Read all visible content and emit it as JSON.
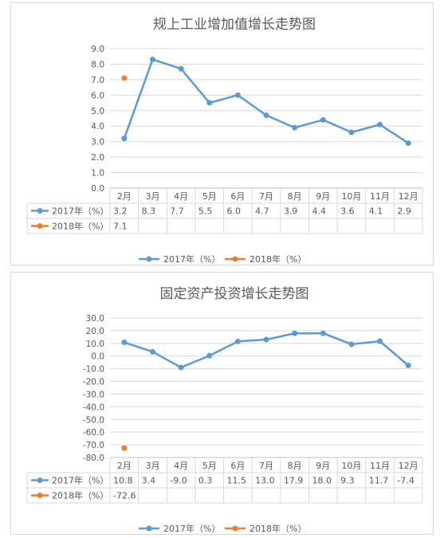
{
  "chart_data": [
    {
      "type": "line",
      "title": "规上工业增加值增长走势图",
      "categories": [
        "2月",
        "3月",
        "4月",
        "5月",
        "6月",
        "7月",
        "8月",
        "9月",
        "10月",
        "11月",
        "12月"
      ],
      "series": [
        {
          "name": "2017年（%）",
          "color": "#5b9bd5",
          "values": [
            3.2,
            8.3,
            7.7,
            5.5,
            6.0,
            4.7,
            3.9,
            4.4,
            3.6,
            4.1,
            2.9
          ]
        },
        {
          "name": "2018年（%）",
          "color": "#ed7d31",
          "values": [
            7.1,
            null,
            null,
            null,
            null,
            null,
            null,
            null,
            null,
            null,
            null
          ]
        }
      ],
      "ylim": [
        0,
        9
      ],
      "ytick_step": 1,
      "ytick_decimals": 1,
      "grid": true,
      "data_table": true,
      "legend": "bottom"
    },
    {
      "type": "line",
      "title": "固定资产投资增长走势图",
      "categories": [
        "2月",
        "3月",
        "4月",
        "5月",
        "6月",
        "7月",
        "8月",
        "9月",
        "10月",
        "11月",
        "12月"
      ],
      "series": [
        {
          "name": "2017年（%）",
          "color": "#5b9bd5",
          "values": [
            10.8,
            3.4,
            -9.0,
            0.3,
            11.5,
            13.0,
            17.9,
            18.0,
            9.3,
            11.7,
            -7.4
          ]
        },
        {
          "name": "2018年（%）",
          "color": "#ed7d31",
          "values": [
            -72.6,
            null,
            null,
            null,
            null,
            null,
            null,
            null,
            null,
            null,
            null
          ]
        }
      ],
      "ylim": [
        -80,
        30
      ],
      "ytick_step": 10,
      "ytick_decimals": 1,
      "grid": true,
      "data_table": true,
      "legend": "bottom"
    }
  ]
}
